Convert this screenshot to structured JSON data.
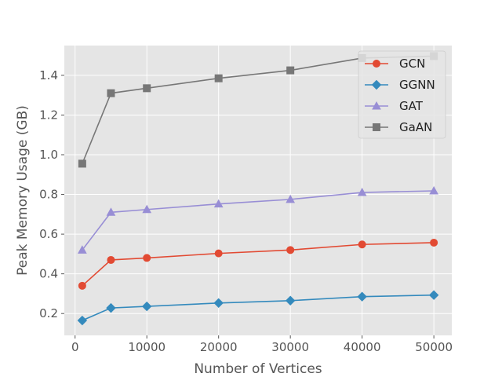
{
  "chart_data": {
    "type": "line",
    "title": "",
    "xlabel": "Number of Vertices",
    "ylabel": "Peak Memory Usage (GB)",
    "xlim": [
      -1500,
      52500
    ],
    "ylim": [
      0.09,
      1.55
    ],
    "x_ticks": [
      0,
      10000,
      20000,
      30000,
      40000,
      50000
    ],
    "y_ticks": [
      0.2,
      0.4,
      0.6,
      0.8,
      1.0,
      1.2,
      1.4
    ],
    "x_tick_labels": [
      "0",
      "10000",
      "20000",
      "30000",
      "40000",
      "50000"
    ],
    "y_tick_labels": [
      "0.2",
      "0.4",
      "0.6",
      "0.8",
      "1.0",
      "1.2",
      "1.4"
    ],
    "grid": true,
    "legend_position": "top-right",
    "x": [
      1000,
      5000,
      10000,
      20000,
      30000,
      40000,
      50000
    ],
    "series": [
      {
        "name": "GCN",
        "color": "#E24A33",
        "marker": "circle",
        "values": [
          0.34,
          0.47,
          0.48,
          0.503,
          0.52,
          0.548,
          0.557
        ]
      },
      {
        "name": "GGNN",
        "color": "#348ABD",
        "marker": "diamond",
        "values": [
          0.165,
          0.228,
          0.236,
          0.253,
          0.265,
          0.285,
          0.293
        ]
      },
      {
        "name": "GAT",
        "color": "#988ED5",
        "marker": "triangle",
        "values": [
          0.52,
          0.71,
          0.724,
          0.752,
          0.775,
          0.81,
          0.818
        ]
      },
      {
        "name": "GaAN",
        "color": "#777777",
        "marker": "square",
        "values": [
          0.955,
          1.31,
          1.335,
          1.385,
          1.425,
          1.487,
          1.497
        ]
      }
    ]
  }
}
